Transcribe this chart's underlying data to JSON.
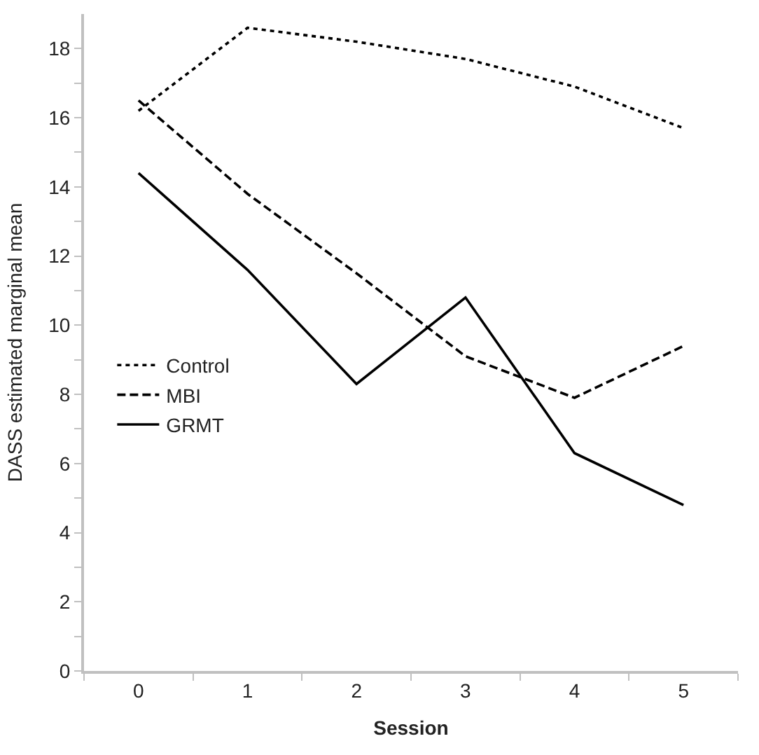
{
  "chart_data": {
    "type": "line",
    "xlabel": "Session",
    "ylabel": "DASS estimated marginal mean",
    "categories": [
      "0",
      "1",
      "2",
      "3",
      "4",
      "5"
    ],
    "series": [
      {
        "name": "Control",
        "color": "#000000",
        "line_style": "dotted",
        "values": [
          16.2,
          18.6,
          18.2,
          17.7,
          16.9,
          15.7
        ]
      },
      {
        "name": "MBI",
        "color": "#000000",
        "line_style": "dashed",
        "values": [
          16.5,
          13.8,
          11.5,
          9.1,
          7.9,
          9.4
        ]
      },
      {
        "name": "GRMT",
        "color": "#000000",
        "line_style": "solid",
        "values": [
          14.4,
          11.6,
          8.3,
          10.8,
          6.3,
          4.8
        ]
      }
    ],
    "ylim": [
      0,
      19
    ],
    "yticks": [
      0,
      {
        "value": 1,
        "label": null
      },
      2,
      {
        "value": 3,
        "label": null
      },
      4,
      {
        "value": 5,
        "label": null
      },
      6,
      {
        "value": 7,
        "label": null
      },
      8,
      {
        "value": 9,
        "label": null
      },
      10,
      {
        "value": 11,
        "label": null
      },
      12,
      {
        "value": 13,
        "label": null
      },
      14,
      {
        "value": 15,
        "label": null
      },
      16,
      {
        "value": 17,
        "label": null
      },
      18
    ],
    "legend": "left",
    "marker": "none"
  }
}
